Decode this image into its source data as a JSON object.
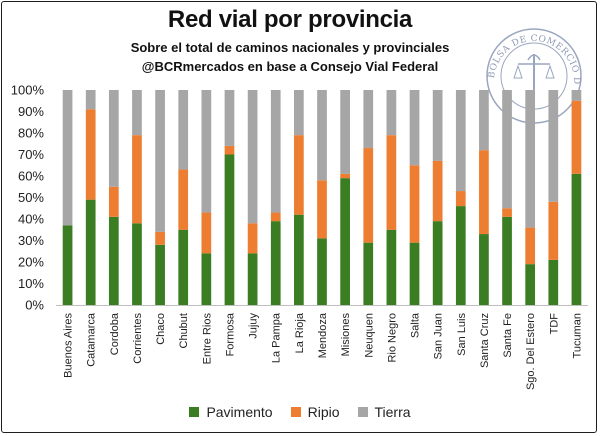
{
  "chart_data": {
    "type": "bar",
    "stacked": true,
    "percent_stacked": true,
    "title": "Red vial por provincia",
    "subtitle": "Sobre el total de caminos nacionales y provinciales",
    "source": "@BCRmercados en base a Consejo Vial Federal",
    "categories": [
      "Buenos Aires",
      "Catamarca",
      "Cordoba",
      "Corrientes",
      "Chaco",
      "Chubut",
      "Entre Rios",
      "Formosa",
      "Jujuy",
      "La Pampa",
      "La Rioja",
      "Mendoza",
      "Misiones",
      "Neuquen",
      "Rio Negro",
      "Salta",
      "San Juan",
      "San Luis",
      "Santa Cruz",
      "Santa Fe",
      "Sgo. Del Estero",
      "TDF",
      "Tucuman"
    ],
    "series": [
      {
        "name": "Pavimento",
        "color": "#3a7d22",
        "values": [
          37,
          49,
          41,
          38,
          28,
          35,
          24,
          70,
          24,
          39,
          42,
          31,
          59,
          29,
          35,
          29,
          39,
          46,
          33,
          41,
          19,
          21,
          61
        ]
      },
      {
        "name": "Ripio",
        "color": "#ed7d31",
        "values": [
          0,
          42,
          14,
          41,
          6,
          28,
          19,
          4,
          14,
          4,
          37,
          27,
          2,
          44,
          44,
          36,
          28,
          7,
          39,
          4,
          17,
          27,
          34
        ]
      },
      {
        "name": "Tierra",
        "color": "#a6a6a6",
        "values": [
          63,
          9,
          45,
          21,
          66,
          37,
          57,
          26,
          62,
          57,
          21,
          42,
          39,
          27,
          21,
          35,
          33,
          47,
          28,
          55,
          64,
          52,
          5
        ]
      }
    ],
    "ylim": [
      0,
      100
    ],
    "yticks": [
      "0%",
      "10%",
      "20%",
      "30%",
      "40%",
      "50%",
      "60%",
      "70%",
      "80%",
      "90%",
      "100%"
    ],
    "grid": false,
    "legend_position": "bottom"
  },
  "watermark": {
    "text": "BOLSA DE COMERCIO DE ROSARIO"
  }
}
